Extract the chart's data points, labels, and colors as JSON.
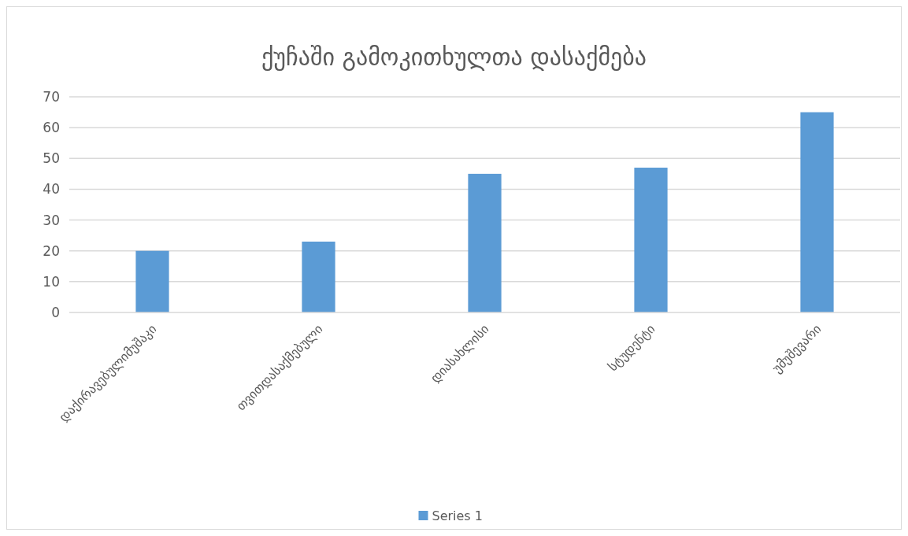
{
  "chart_data": {
    "type": "bar",
    "title": "ქუჩაში გამოკითხულთა დასაქმება",
    "categories": [
      "დაქირავებულიმუშაკი",
      "თვითდასაქმებული",
      "დიასახლისი",
      "სტუდენტი",
      "უმუშევარი"
    ],
    "series": [
      {
        "name": "Series 1",
        "color": "#5b9bd5",
        "values": [
          20,
          23,
          45,
          47,
          65
        ]
      }
    ],
    "ylim": [
      0,
      70
    ],
    "yticks": [
      0,
      10,
      20,
      30,
      40,
      50,
      60,
      70
    ],
    "grid": "y",
    "legend": "bottom"
  }
}
